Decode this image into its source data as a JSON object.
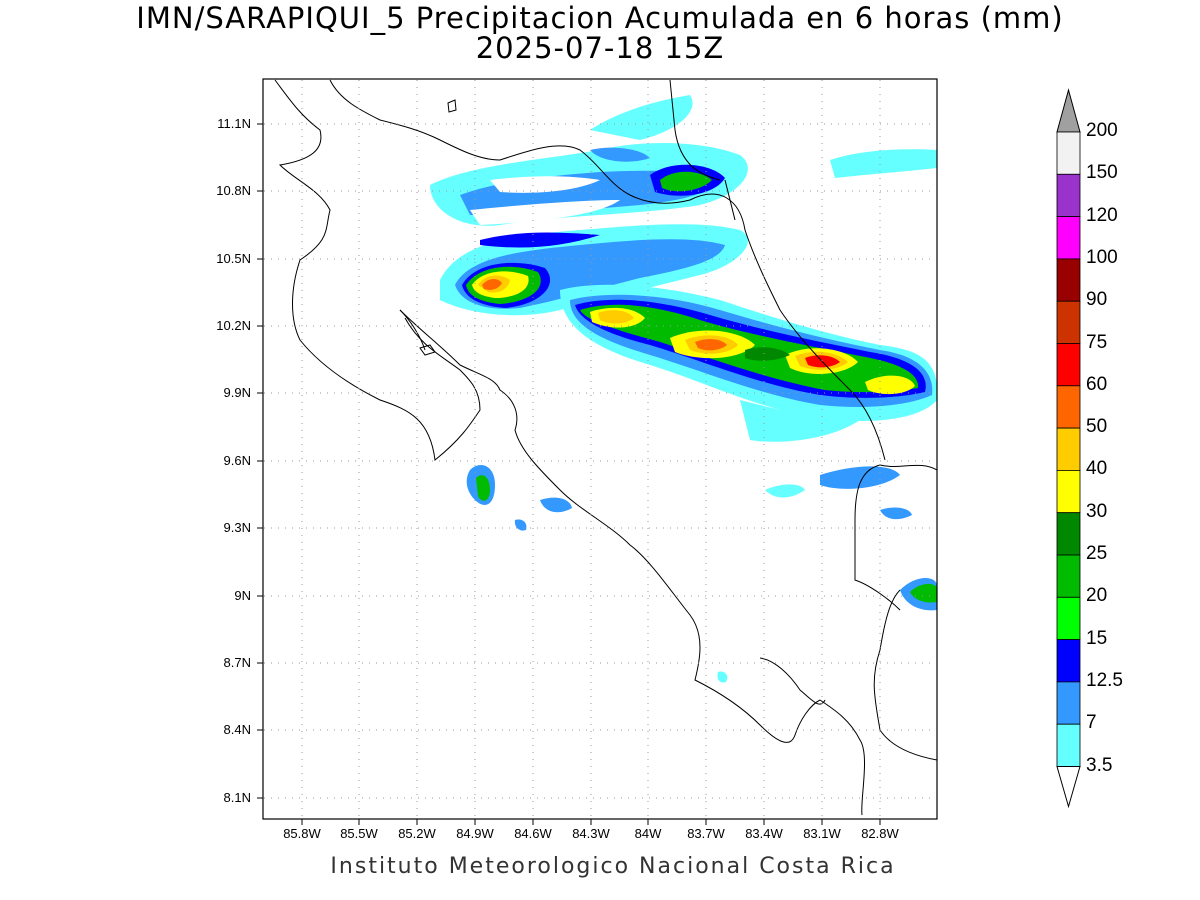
{
  "title": {
    "line1": "IMN/SARAPIQUI_5 Precipitacion Acumulada en 6 horas (mm)",
    "line2": "2025-07-18 15Z"
  },
  "footer": "Instituto Meteorologico Nacional Costa Rica",
  "axes": {
    "x_ticks": [
      "85.8W",
      "85.5W",
      "85.2W",
      "84.9W",
      "84.6W",
      "84.3W",
      "84W",
      "83.7W",
      "83.4W",
      "83.1W",
      "82.8W"
    ],
    "y_ticks": [
      "11.1N",
      "10.8N",
      "10.5N",
      "10.2N",
      "9.9N",
      "9.6N",
      "9.3N",
      "9N",
      "8.7N",
      "8.4N",
      "8.1N"
    ],
    "grid": "dotted"
  },
  "colorbar": {
    "labels": [
      "200",
      "150",
      "120",
      "100",
      "90",
      "75",
      "60",
      "50",
      "40",
      "30",
      "25",
      "20",
      "15",
      "12.5",
      "7",
      "3.5"
    ],
    "colors": [
      "#a0a0a0",
      "#f2f2f2",
      "#9933cc",
      "#ff00ff",
      "#990000",
      "#cc3300",
      "#ff0000",
      "#ff6600",
      "#ffcc00",
      "#ffff00",
      "#008800",
      "#00bb00",
      "#00ff00",
      "#0000ff",
      "#3399ff",
      "#66ffff"
    ]
  }
}
